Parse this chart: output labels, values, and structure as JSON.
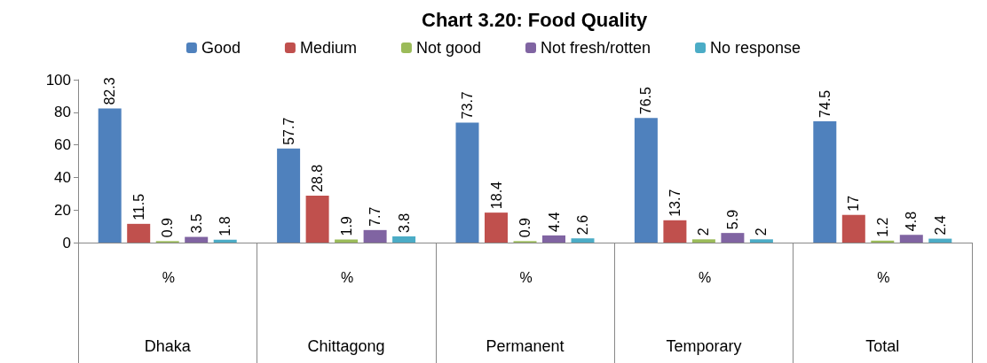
{
  "chart_data": {
    "type": "bar",
    "title": "Chart 3.20: Food Quality",
    "categories": [
      "Dhaka",
      "Chittagong",
      "Permanent",
      "Temporary",
      "Total"
    ],
    "series": [
      {
        "name": "Good",
        "color": "#4f81bd",
        "values": [
          82.3,
          57.7,
          73.7,
          76.5,
          74.5
        ]
      },
      {
        "name": "Medium",
        "color": "#c0504d",
        "values": [
          11.5,
          28.8,
          18.4,
          13.7,
          17
        ]
      },
      {
        "name": "Not good",
        "color": "#9bbb59",
        "values": [
          0.9,
          1.9,
          0.9,
          2,
          1.2
        ]
      },
      {
        "name": "Not fresh/rotten",
        "color": "#8064a2",
        "values": [
          3.5,
          7.7,
          4.4,
          5.9,
          4.8
        ]
      },
      {
        "name": "No response",
        "color": "#4bacc6",
        "values": [
          1.8,
          3.8,
          2.6,
          2,
          2.4
        ]
      }
    ],
    "annotations": [
      "%",
      "%",
      "%",
      "%",
      "%"
    ],
    "ylim": [
      0,
      100
    ],
    "yticks": [
      0,
      20,
      40,
      60,
      80,
      100
    ],
    "grid": false,
    "legend": "top",
    "data_labels": true
  }
}
